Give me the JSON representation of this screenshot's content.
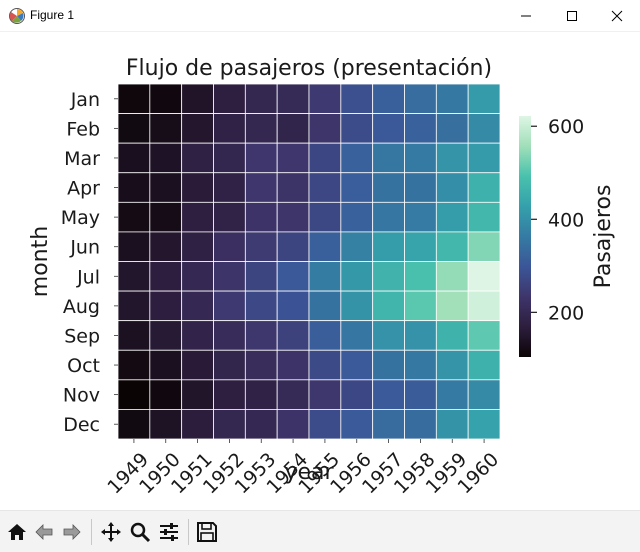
{
  "window": {
    "title": "Figure 1",
    "icons": {
      "app": "matplotlib-figure-icon",
      "minimize": "minimize-icon",
      "maximize": "maximize-icon",
      "close": "close-icon"
    }
  },
  "toolbar": {
    "buttons": [
      {
        "name": "home-icon",
        "tooltip": ""
      },
      {
        "name": "back-arrow-icon",
        "tooltip": ""
      },
      {
        "name": "forward-arrow-icon",
        "tooltip": ""
      },
      {
        "name": "pan-icon",
        "tooltip": ""
      },
      {
        "name": "zoom-icon",
        "tooltip": ""
      },
      {
        "name": "configure-subplots-icon",
        "tooltip": ""
      },
      {
        "name": "save-icon",
        "tooltip": ""
      }
    ]
  },
  "chart_data": {
    "type": "heatmap",
    "title": "Flujo de pasajeros (presentación)",
    "xlabel": "year",
    "ylabel": "month",
    "x": [
      "1949",
      "1950",
      "1951",
      "1952",
      "1953",
      "1954",
      "1955",
      "1956",
      "1957",
      "1958",
      "1959",
      "1960"
    ],
    "y": [
      "Jan",
      "Feb",
      "Mar",
      "Apr",
      "May",
      "Jun",
      "Jul",
      "Aug",
      "Sep",
      "Oct",
      "Nov",
      "Dec"
    ],
    "values": [
      [
        112,
        115,
        145,
        171,
        196,
        204,
        242,
        284,
        315,
        340,
        360,
        417
      ],
      [
        118,
        126,
        150,
        180,
        196,
        188,
        233,
        277,
        301,
        318,
        342,
        391
      ],
      [
        132,
        141,
        178,
        193,
        236,
        235,
        267,
        317,
        356,
        362,
        406,
        419
      ],
      [
        129,
        135,
        163,
        181,
        235,
        227,
        269,
        313,
        348,
        348,
        396,
        461
      ],
      [
        121,
        125,
        172,
        183,
        229,
        234,
        270,
        318,
        355,
        363,
        420,
        472
      ],
      [
        135,
        149,
        178,
        218,
        243,
        264,
        315,
        374,
        422,
        435,
        472,
        535
      ],
      [
        148,
        170,
        199,
        230,
        264,
        302,
        364,
        413,
        465,
        491,
        548,
        622
      ],
      [
        148,
        170,
        199,
        242,
        272,
        293,
        347,
        405,
        467,
        505,
        559,
        606
      ],
      [
        136,
        158,
        184,
        209,
        237,
        259,
        312,
        355,
        404,
        404,
        463,
        508
      ],
      [
        119,
        133,
        162,
        191,
        211,
        229,
        274,
        306,
        347,
        359,
        407,
        461
      ],
      [
        104,
        114,
        146,
        172,
        180,
        203,
        237,
        271,
        305,
        310,
        362,
        390
      ],
      [
        118,
        140,
        166,
        194,
        201,
        229,
        278,
        306,
        336,
        337,
        405,
        432
      ]
    ],
    "colorbar": {
      "label": "Pasajeros",
      "range": [
        104,
        622
      ],
      "ticks": [
        200,
        400,
        600
      ],
      "tick_labels": [
        "200",
        "400",
        "600"
      ],
      "colormap": "mako"
    },
    "cell_border_color": "#ffffff",
    "colors": {
      "stops": [
        "#0b0405",
        "#2d1e3e",
        "#3e356b",
        "#3b5698",
        "#357ba3",
        "#35a0ab",
        "#49c1ad",
        "#a0dfb9",
        "#def5e5"
      ]
    }
  }
}
